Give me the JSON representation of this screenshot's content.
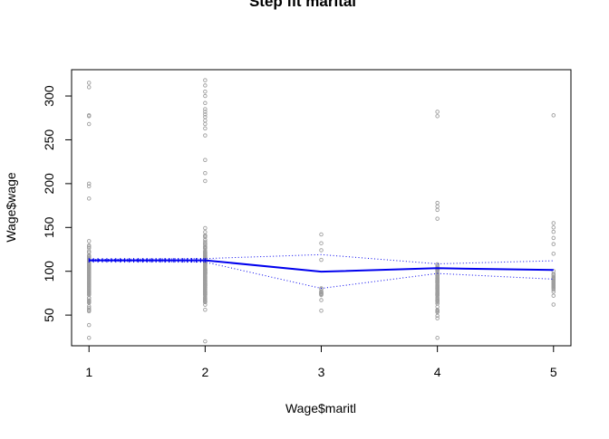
{
  "chart_data": {
    "type": "scatter",
    "title": "Step fit marital",
    "xlabel": "Wage$maritl",
    "ylabel": "Wage$wage",
    "xlim": [
      0.85,
      5.15
    ],
    "ylim": [
      15,
      330
    ],
    "x_ticks": [
      1,
      2,
      3,
      4,
      5
    ],
    "y_ticks": [
      50,
      100,
      150,
      200,
      250,
      300
    ],
    "grid": false,
    "legend": "none",
    "colors": {
      "points": "#9e9e9e",
      "fit": "#0000ee",
      "band": "#0000ee",
      "axis": "#000000"
    },
    "scatter_points": [
      {
        "x": 1,
        "range": [
          24,
          183
        ],
        "n": 140,
        "extra": [
          197,
          200,
          268,
          277,
          278,
          310,
          315
        ]
      },
      {
        "x": 2,
        "range": [
          20,
          203
        ],
        "n": 230,
        "extra": [
          212,
          227,
          255,
          263,
          268,
          272,
          276,
          279,
          282,
          285,
          292,
          300,
          305,
          312,
          318
        ]
      },
      {
        "x": 3,
        "range": [
          55,
          113
        ],
        "n": 14,
        "extra": [
          124,
          132,
          142
        ]
      },
      {
        "x": 4,
        "range": [
          24,
          160
        ],
        "n": 90,
        "extra": [
          170,
          174,
          178,
          277,
          282
        ]
      },
      {
        "x": 5,
        "range": [
          62,
          120
        ],
        "n": 35,
        "extra": [
          131,
          138,
          145,
          150,
          155,
          278
        ]
      }
    ],
    "fit_line": {
      "x": [
        1,
        2,
        3,
        4,
        5
      ],
      "y": [
        112.5,
        112.5,
        99.5,
        103.5,
        101.5
      ]
    },
    "band_upper": {
      "x": [
        1,
        2,
        3,
        4,
        5
      ],
      "y": [
        113.5,
        114.5,
        119,
        108.5,
        112
      ]
    },
    "band_lower": {
      "x": [
        1,
        2,
        3,
        4,
        5
      ],
      "y": [
        111.5,
        110.5,
        80.5,
        97.5,
        91
      ]
    }
  }
}
